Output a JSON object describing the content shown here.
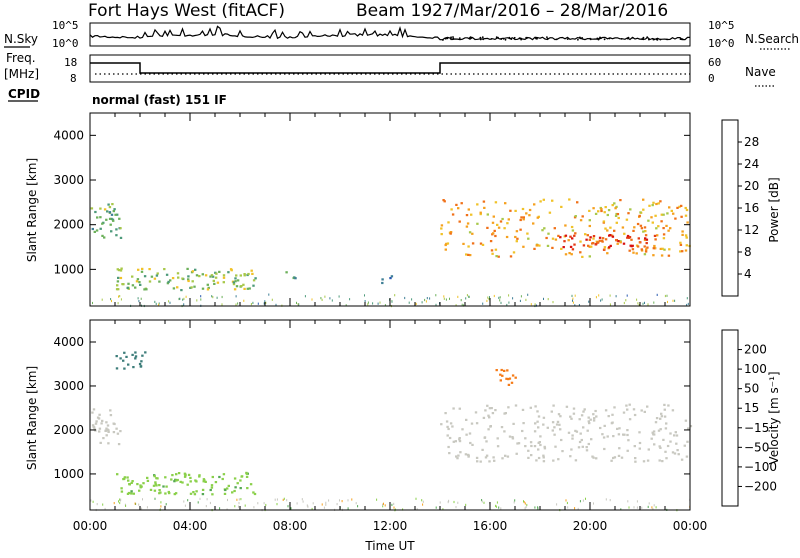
{
  "header": {
    "station": "Fort Hays West (fitACF)",
    "beam": "Beam 19",
    "date_range": "27/Mar/2016 – 28/Mar/2016"
  },
  "panels": {
    "noise": {
      "label_left": "N.Sky",
      "label_right": "N.Search",
      "left_ticks": [
        "10^5",
        "10^0"
      ],
      "right_ticks": [
        "10^5",
        "10^0"
      ]
    },
    "freq": {
      "label_left_1": "Freq.",
      "label_left_2": "[MHz]",
      "label_right": "Nave",
      "left_ticks": [
        "18",
        "8"
      ],
      "right_ticks": [
        "60",
        "0"
      ]
    },
    "cpid": {
      "label": "CPID",
      "mode": "normal (fast) 151 IF"
    }
  },
  "colors": {
    "power_scale": [
      "#1f2bd6",
      "#2a5ab0",
      "#3f7f96",
      "#4d9a7a",
      "#6cb05a",
      "#a8c84a",
      "#f0c228",
      "#f5a01e",
      "#f07018",
      "#e43a14",
      "#d81010"
    ],
    "velocity_scale": [
      "#e81010",
      "#f04a14",
      "#f57b18",
      "#f5a01e",
      "#c8c8c0",
      "#c8c8c0",
      "#8ad04a",
      "#55a855",
      "#3d7d7a",
      "#2a56b0",
      "#1f2bd6"
    ]
  },
  "chart_data": [
    {
      "type": "heatmap",
      "title": "",
      "xlabel": "",
      "ylabel": "Slant Range [km]",
      "x_range": [
        "00:00",
        "00:00 (+1 day)"
      ],
      "y_range_km": [
        180,
        4500
      ],
      "y_ticks": [
        "1000",
        "2000",
        "3000",
        "4000"
      ],
      "colorbar": {
        "label": "Power [dB]",
        "range": [
          0,
          30
        ],
        "ticks": [
          "4",
          "8",
          "12",
          "16",
          "20",
          "24",
          "28"
        ]
      },
      "features": [
        {
          "time_h": [
            0.0,
            1.2
          ],
          "range_km": [
            1700,
            2500
          ],
          "power_db": 12
        },
        {
          "time_h": [
            1.0,
            6.6
          ],
          "range_km": [
            560,
            1050
          ],
          "power_db": 14
        },
        {
          "time_h": [
            7.6,
            8.2
          ],
          "range_km": [
            820,
            1000
          ],
          "power_db": 10
        },
        {
          "time_h": [
            11.6,
            12.1
          ],
          "range_km": [
            700,
            900
          ],
          "power_db": 6
        },
        {
          "time_h": [
            14.0,
            24.0
          ],
          "range_km": [
            1300,
            2600
          ],
          "power_db": 20
        },
        {
          "time_h": [
            18.6,
            22.6
          ],
          "range_km": [
            1450,
            1800
          ],
          "power_db": 28
        }
      ]
    },
    {
      "type": "heatmap",
      "title": "",
      "xlabel": "Time UT",
      "ylabel": "Slant Range [km]",
      "x_ticks": [
        "00:00",
        "04:00",
        "08:00",
        "12:00",
        "16:00",
        "20:00",
        "00:00"
      ],
      "y_range_km": [
        180,
        4500
      ],
      "y_ticks": [
        "1000",
        "2000",
        "3000",
        "4000"
      ],
      "colorbar": {
        "label": "Velocity [m s⁻¹]",
        "range": [
          -250,
          250
        ],
        "ticks": [
          "200",
          "100",
          "50",
          "15",
          "−15",
          "−50",
          "−100",
          "−200"
        ]
      },
      "features": [
        {
          "time_h": [
            0.0,
            1.2
          ],
          "range_km": [
            1700,
            2500
          ],
          "velocity_ms": 0
        },
        {
          "time_h": [
            1.0,
            6.6
          ],
          "range_km": [
            560,
            1050
          ],
          "velocity_ms": 60
        },
        {
          "time_h": [
            1.0,
            2.2
          ],
          "range_km": [
            3400,
            3800
          ],
          "velocity_ms": 150
        },
        {
          "time_h": [
            14.0,
            24.0
          ],
          "range_km": [
            1300,
            2600
          ],
          "velocity_ms": 0
        },
        {
          "time_h": [
            16.2,
            17.2
          ],
          "range_km": [
            3050,
            3400
          ],
          "velocity_ms": -150
        }
      ]
    }
  ]
}
